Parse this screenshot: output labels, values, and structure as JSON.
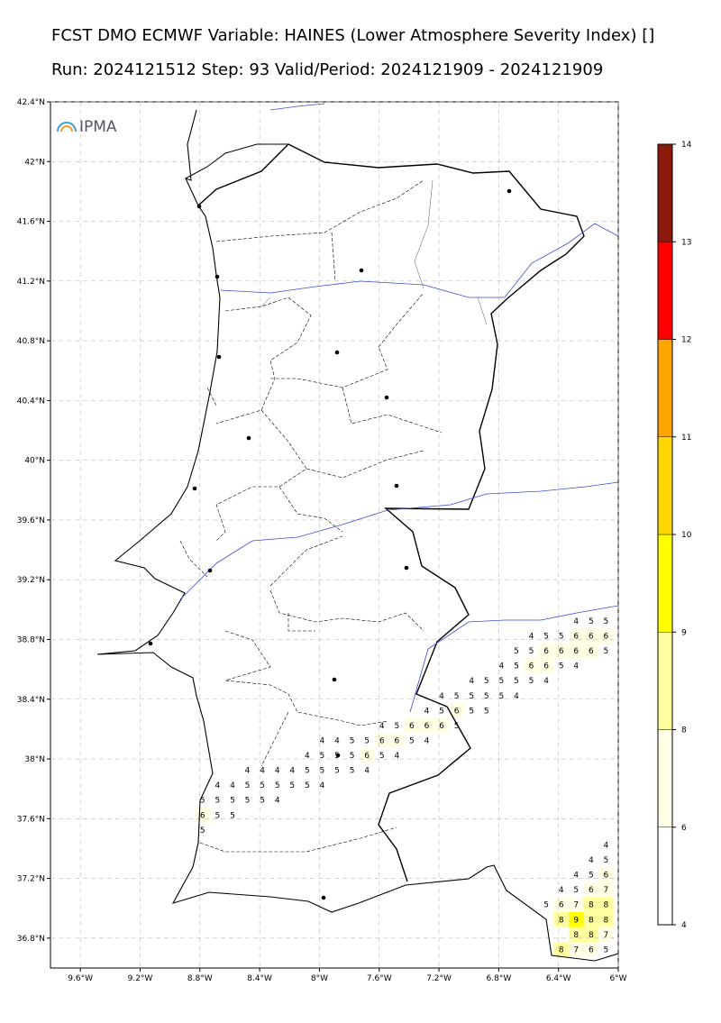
{
  "header": {
    "title": "FCST DMO ECMWF Variable: HAINES (Lower Atmosphere Severity Index) []",
    "subtitle": "Run: 2024121512 Step: 93 Valid/Period: 2024121909 - 2024121909"
  },
  "logo": "IPMA",
  "map": {
    "xlim": [
      -9.8,
      -6
    ],
    "ylim": [
      36.6,
      42.4
    ],
    "xticks": [
      {
        "value": -9.6,
        "label": "9.6°W"
      },
      {
        "value": -9.2,
        "label": "9.2°W"
      },
      {
        "value": -8.8,
        "label": "8.8°W"
      },
      {
        "value": -8.4,
        "label": "8.4°W"
      },
      {
        "value": -8,
        "label": "8°W"
      },
      {
        "value": -7.6,
        "label": "7.6°W"
      },
      {
        "value": -7.2,
        "label": "7.2°W"
      },
      {
        "value": -6.8,
        "label": "6.8°W"
      },
      {
        "value": -6.4,
        "label": "6.4°W"
      },
      {
        "value": -6,
        "label": "6°W"
      }
    ],
    "yticks": [
      {
        "value": 42.4,
        "label": "42.4°N"
      },
      {
        "value": 42,
        "label": "42°N"
      },
      {
        "value": 41.6,
        "label": "41.6°N"
      },
      {
        "value": 41.2,
        "label": "41.2°N"
      },
      {
        "value": 40.8,
        "label": "40.8°N"
      },
      {
        "value": 40.4,
        "label": "40.4°N"
      },
      {
        "value": 40,
        "label": "40°N"
      },
      {
        "value": 39.6,
        "label": "39.6°N"
      },
      {
        "value": 39.2,
        "label": "39.2°N"
      },
      {
        "value": 38.8,
        "label": "38.8°N"
      },
      {
        "value": 38.4,
        "label": "38.4°N"
      },
      {
        "value": 38,
        "label": "38°N"
      },
      {
        "value": 37.6,
        "label": "37.6°N"
      },
      {
        "value": 37.2,
        "label": "37.2°N"
      },
      {
        "value": 36.8,
        "label": "36.8°N"
      }
    ],
    "grid": [
      {
        "lat": 38.9,
        "lon": -6.3,
        "values": [
          4,
          5,
          5
        ]
      },
      {
        "lat": 38.8,
        "lon": -6.6,
        "values": [
          4,
          5,
          5,
          6,
          6,
          6
        ]
      },
      {
        "lat": 38.7,
        "lon": -6.7,
        "values": [
          5,
          5,
          6,
          6,
          6,
          6,
          5
        ]
      },
      {
        "lat": 38.6,
        "lon": -6.8,
        "values": [
          4,
          5,
          6,
          6,
          5,
          4
        ]
      },
      {
        "lat": 38.5,
        "lon": -7.0,
        "values": [
          4,
          5,
          5,
          5,
          5,
          4
        ]
      },
      {
        "lat": 38.4,
        "lon": -7.2,
        "values": [
          4,
          5,
          5,
          5,
          5,
          4
        ]
      },
      {
        "lat": 38.3,
        "lon": -7.3,
        "values": [
          4,
          5,
          6,
          5,
          5
        ]
      },
      {
        "lat": 38.2,
        "lon": -7.6,
        "values": [
          4,
          5,
          6,
          6,
          6,
          5
        ]
      },
      {
        "lat": 38.1,
        "lon": -8.0,
        "values": [
          4,
          4,
          5,
          5,
          6,
          6,
          5,
          4
        ]
      },
      {
        "lat": 38.0,
        "lon": -8.1,
        "values": [
          4,
          5,
          5,
          5,
          6,
          5,
          4
        ]
      },
      {
        "lat": 37.9,
        "lon": -8.5,
        "values": [
          4,
          4,
          4,
          4,
          5,
          5,
          5,
          5,
          4
        ]
      },
      {
        "lat": 37.8,
        "lon": -8.7,
        "values": [
          4,
          4,
          5,
          5,
          5,
          5,
          5,
          4
        ]
      },
      {
        "lat": 37.7,
        "lon": -8.8,
        "values": [
          5,
          5,
          5,
          5,
          5,
          4
        ]
      },
      {
        "lat": 37.6,
        "lon": -8.8,
        "values": [
          6,
          5,
          5
        ]
      },
      {
        "lat": 37.5,
        "lon": -8.8,
        "values": [
          5
        ]
      },
      {
        "lat": 37.4,
        "lon": -6.1,
        "values": [
          4
        ]
      },
      {
        "lat": 37.3,
        "lon": -6.2,
        "values": [
          4,
          5
        ]
      },
      {
        "lat": 37.2,
        "lon": -6.3,
        "values": [
          4,
          5,
          6
        ]
      },
      {
        "lat": 37.1,
        "lon": -6.4,
        "values": [
          4,
          5,
          6,
          7
        ]
      },
      {
        "lat": 37.0,
        "lon": -6.5,
        "values": [
          5,
          6,
          7,
          8,
          8
        ]
      },
      {
        "lat": 36.9,
        "lon": -6.4,
        "values": [
          8,
          9,
          8,
          8
        ]
      },
      {
        "lat": 36.8,
        "lon": -6.3,
        "values": [
          8,
          8,
          7
        ]
      },
      {
        "lat": 36.7,
        "lon": -6.4,
        "values": [
          8,
          7,
          6,
          5
        ]
      }
    ]
  },
  "colorbar": {
    "ticks": [
      4,
      6,
      8,
      9,
      10,
      11,
      12,
      13,
      14
    ],
    "colors": [
      "#ffffff",
      "#fffde4",
      "#ffff9e",
      "#ffff00",
      "#ffd700",
      "#ffa500",
      "#ff0000",
      "#8b1a0c"
    ]
  }
}
